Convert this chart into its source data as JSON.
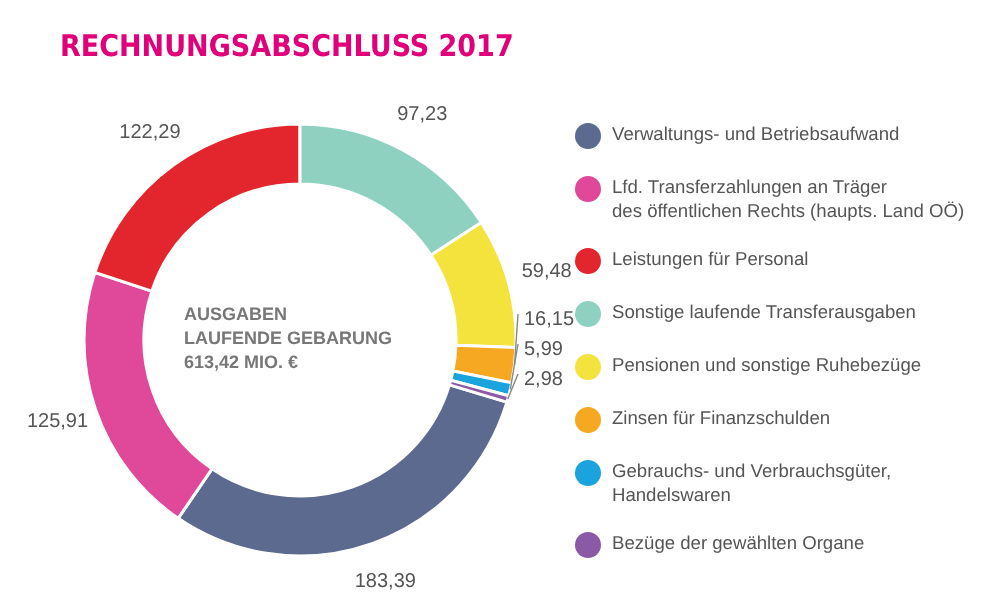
{
  "chart_data": {
    "type": "donut",
    "title": "RECHNUNGSABSCHLUSS 2017",
    "categories": [
      "Verwaltungs- und Betriebsaufwand",
      "Lfd. Transferzahlungen an Träger\ndes öffentlichen Rechts (haupts. Land OÖ)",
      "Leistungen für Personal",
      "Sonstige laufende Transferausgaben",
      "Pensionen und sonstige Ruhebezüge",
      "Zinsen für Finanzschulden",
      "Gebrauchs- und Verbrauchsgüter,\nHandelswaren",
      "Bezüge der gewählten Organe"
    ],
    "values": [
      183.39,
      125.91,
      122.29,
      97.23,
      59.48,
      16.15,
      5.99,
      2.98
    ],
    "value_labels": [
      "183,39",
      "125,91",
      "122,29",
      "97,23",
      "59,48",
      "16,15",
      "5,99",
      "2,98"
    ],
    "colors": [
      "#5b6a8e",
      "#e0489a",
      "#e3262d",
      "#8fd1c0",
      "#f4e33c",
      "#f7a823",
      "#1aa3dc",
      "#8a5aa6"
    ],
    "annotations": [
      "AUSGABEN\nLAUFENDE GEBARUNG\n613,42 MIO. €"
    ],
    "legend": "right"
  }
}
